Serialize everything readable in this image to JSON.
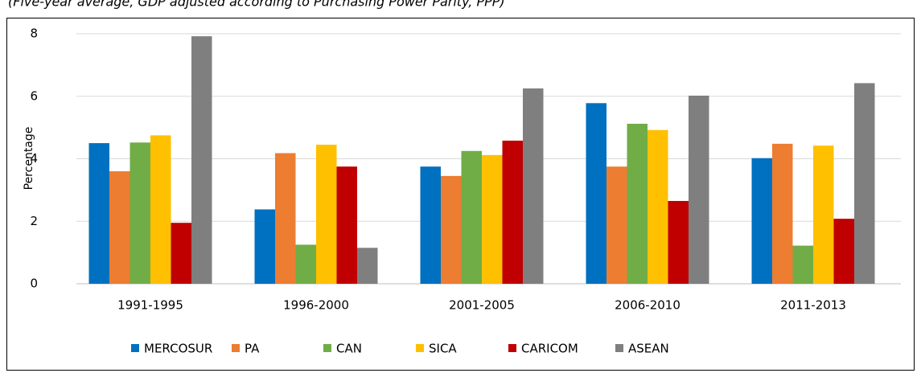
{
  "chart_data": {
    "type": "bar",
    "subtitle": "(Five-year average, GDP adjusted according to Purchasing Power Parity, PPP)",
    "ylabel": "Percentage",
    "categories": [
      "1991-1995",
      "1996-2000",
      "2001-2005",
      "2006-2010",
      "2011-2013"
    ],
    "series": [
      {
        "name": "MERCOSUR",
        "color": "#0070c0",
        "values": [
          4.5,
          2.38,
          3.75,
          5.78,
          4.02
        ]
      },
      {
        "name": "PA",
        "color": "#ed7d31",
        "values": [
          3.6,
          4.18,
          3.45,
          3.75,
          4.48
        ]
      },
      {
        "name": "CAN",
        "color": "#70ad47",
        "values": [
          4.52,
          1.25,
          4.25,
          5.12,
          1.22
        ]
      },
      {
        "name": "SICA",
        "color": "#ffc000",
        "values": [
          4.75,
          4.45,
          4.12,
          4.92,
          4.42
        ]
      },
      {
        "name": "CARICOM",
        "color": "#c00000",
        "values": [
          1.95,
          3.75,
          4.58,
          2.65,
          2.08
        ]
      },
      {
        "name": "ASEAN",
        "color": "#7f7f7f",
        "values": [
          7.92,
          1.15,
          6.25,
          6.02,
          6.42
        ]
      }
    ],
    "ylim": [
      0,
      8.3
    ],
    "yticks": [
      0,
      2,
      4,
      6,
      8
    ],
    "grid": true,
    "legend": "bottom"
  }
}
